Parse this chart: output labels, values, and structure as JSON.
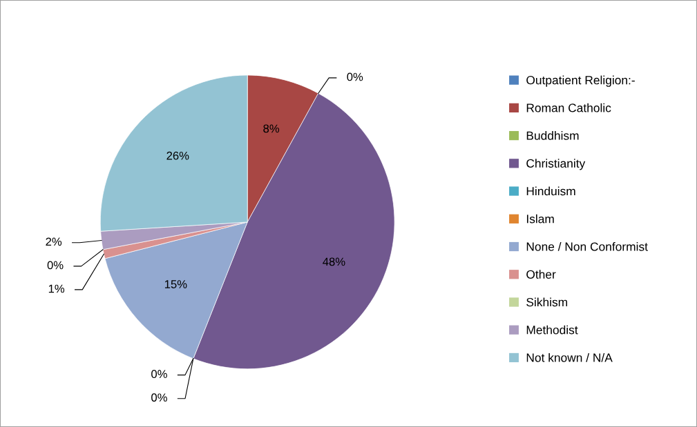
{
  "chart_data": {
    "type": "pie",
    "categories": [
      "Outpatient Religion:-",
      "Roman Catholic",
      "Buddhism",
      "Christianity",
      "Hinduism",
      "Islam",
      "None / Non Conformist",
      "Other",
      "Sikhism",
      "Methodist",
      "Not known / N/A"
    ],
    "values": [
      0,
      8,
      0,
      48,
      0,
      0,
      15,
      1,
      0,
      2,
      26
    ],
    "value_labels": [
      null,
      "8%",
      "0%",
      "48%",
      "0%",
      "0%",
      "15%",
      "1%",
      "0%",
      "2%",
      "26%"
    ],
    "colors": [
      "#4f81bd",
      "#a84744",
      "#9bbb59",
      "#71588f",
      "#4bacc6",
      "#e0852f",
      "#93a9d0",
      "#d9918f",
      "#c3d69b",
      "#ab9cc0",
      "#93c3d3"
    ],
    "legend": "right"
  }
}
